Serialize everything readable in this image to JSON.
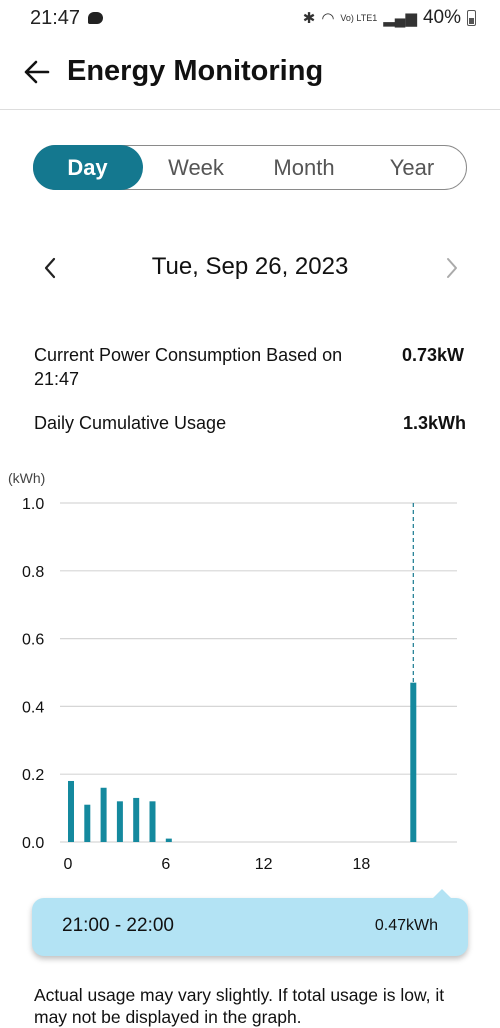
{
  "status_bar": {
    "time": "21:47",
    "lte_label": "Vo) LTE1",
    "battery": "40%"
  },
  "header": {
    "title": "Energy Monitoring"
  },
  "period_tabs": [
    "Day",
    "Week",
    "Month",
    "Year"
  ],
  "selected_period": "Day",
  "date_nav": {
    "date": "Tue, Sep 26, 2023"
  },
  "stats": {
    "current_label": "Current Power Consumption Based on 21:47",
    "current_value": "0.73kW",
    "daily_label": "Daily Cumulative Usage",
    "daily_value": "1.3kWh"
  },
  "chart_data": {
    "type": "bar",
    "unit_label": "(kWh)",
    "x_ticks": [
      "0",
      "6",
      "12",
      "18"
    ],
    "y_ticks": [
      "0.0",
      "0.2",
      "0.4",
      "0.6",
      "0.8",
      "1.0"
    ],
    "xlim": [
      0,
      24
    ],
    "ylim": [
      0,
      1.0
    ],
    "grid": true,
    "hours": [
      0,
      1,
      2,
      3,
      4,
      5,
      6,
      21
    ],
    "values": [
      0.18,
      0.11,
      0.16,
      0.12,
      0.13,
      0.12,
      0.01,
      0.47
    ],
    "selected_hour": 21,
    "bar_color": "#14899e"
  },
  "tooltip": {
    "time_range": "21:00 - 22:00",
    "value": "0.47kWh"
  },
  "disclaimer": "Actual usage may vary slightly. If total usage is low, it may not be displayed in the graph."
}
